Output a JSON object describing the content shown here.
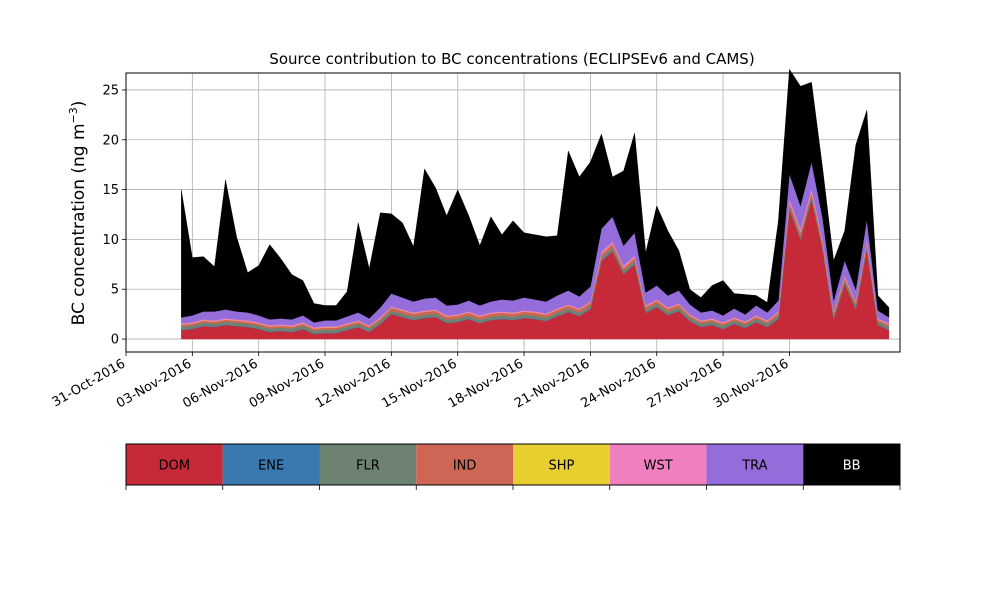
{
  "chart_data": {
    "type": "area",
    "stacked": true,
    "title": "Source contribution to BC concentrations (ECLIPSEv6 and CAMS)",
    "ylabel": "BC concentration (ng m",
    "ylabel_superscript": "−3",
    "ylabel_close": ")",
    "xlabel": "",
    "ylim": [
      -1.3,
      26.7
    ],
    "yticks": [
      0,
      5,
      10,
      15,
      20,
      25
    ],
    "xlim": [
      "2016-10-31",
      "2016-12-05"
    ],
    "xticks": [
      "31-Oct-2016",
      "03-Nov-2016",
      "06-Nov-2016",
      "09-Nov-2016",
      "12-Nov-2016",
      "15-Nov-2016",
      "18-Nov-2016",
      "21-Nov-2016",
      "24-Nov-2016",
      "27-Nov-2016",
      "30-Nov-2016"
    ],
    "grid": true,
    "legend_placement": "bottom colorbar",
    "x": [
      "2016-11-02 12:00",
      "2016-11-03 00:00",
      "2016-11-03 12:00",
      "2016-11-04 00:00",
      "2016-11-04 12:00",
      "2016-11-05 00:00",
      "2016-11-05 12:00",
      "2016-11-06 00:00",
      "2016-11-06 12:00",
      "2016-11-07 00:00",
      "2016-11-07 12:00",
      "2016-11-08 00:00",
      "2016-11-08 12:00",
      "2016-11-09 00:00",
      "2016-11-09 12:00",
      "2016-11-10 00:00",
      "2016-11-10 12:00",
      "2016-11-11 00:00",
      "2016-11-11 12:00",
      "2016-11-12 00:00",
      "2016-11-12 12:00",
      "2016-11-13 00:00",
      "2016-11-13 12:00",
      "2016-11-14 00:00",
      "2016-11-14 12:00",
      "2016-11-15 00:00",
      "2016-11-15 12:00",
      "2016-11-16 00:00",
      "2016-11-16 12:00",
      "2016-11-17 00:00",
      "2016-11-17 12:00",
      "2016-11-18 00:00",
      "2016-11-18 12:00",
      "2016-11-19 00:00",
      "2016-11-19 12:00",
      "2016-11-20 00:00",
      "2016-11-20 12:00",
      "2016-11-21 00:00",
      "2016-11-21 12:00",
      "2016-11-22 00:00",
      "2016-11-22 12:00",
      "2016-11-23 00:00",
      "2016-11-23 12:00",
      "2016-11-24 00:00",
      "2016-11-24 12:00",
      "2016-11-25 00:00",
      "2016-11-25 12:00",
      "2016-11-26 00:00",
      "2016-11-26 12:00",
      "2016-11-27 00:00",
      "2016-11-27 12:00",
      "2016-11-28 00:00",
      "2016-11-28 12:00",
      "2016-11-29 00:00",
      "2016-11-29 12:00",
      "2016-11-30 00:00",
      "2016-11-30 12:00",
      "2016-12-01 00:00",
      "2016-12-01 12:00",
      "2016-12-02 00:00",
      "2016-12-02 12:00",
      "2016-12-03 00:00",
      "2016-12-03 12:00",
      "2016-12-04 00:00",
      "2016-12-04 12:00"
    ],
    "series": [
      {
        "name": "DOM",
        "color": "#c62a38",
        "values": [
          0.9,
          1.0,
          1.3,
          1.2,
          1.4,
          1.3,
          1.2,
          1.0,
          0.7,
          0.8,
          0.7,
          1.0,
          0.5,
          0.6,
          0.6,
          0.9,
          1.2,
          0.7,
          1.5,
          2.5,
          2.2,
          1.9,
          2.1,
          2.2,
          1.6,
          1.7,
          2.0,
          1.6,
          1.9,
          2.0,
          1.9,
          2.1,
          2.0,
          1.8,
          2.3,
          2.7,
          2.3,
          3.0,
          7.8,
          8.8,
          6.5,
          7.5,
          2.6,
          3.2,
          2.4,
          2.8,
          1.8,
          1.2,
          1.4,
          1.0,
          1.5,
          1.1,
          1.7,
          1.2,
          2.0,
          13.0,
          10.0,
          14.0,
          9.0,
          2.0,
          5.5,
          3.0,
          9.0,
          1.4,
          0.9
        ]
      },
      {
        "name": "ENE",
        "color": "#3a78b0",
        "values": [
          0.05,
          0.05,
          0.05,
          0.05,
          0.05,
          0.05,
          0.05,
          0.05,
          0.05,
          0.05,
          0.05,
          0.05,
          0.05,
          0.05,
          0.05,
          0.05,
          0.05,
          0.05,
          0.05,
          0.05,
          0.05,
          0.05,
          0.05,
          0.05,
          0.05,
          0.05,
          0.05,
          0.05,
          0.05,
          0.05,
          0.05,
          0.05,
          0.05,
          0.05,
          0.05,
          0.05,
          0.05,
          0.05,
          0.05,
          0.05,
          0.05,
          0.05,
          0.05,
          0.05,
          0.05,
          0.05,
          0.05,
          0.05,
          0.05,
          0.05,
          0.05,
          0.05,
          0.05,
          0.05,
          0.05,
          0.05,
          0.05,
          0.05,
          0.05,
          0.05,
          0.05,
          0.05,
          0.05,
          0.05,
          0.05
        ]
      },
      {
        "name": "FLR",
        "color": "#6e8272",
        "values": [
          0.3,
          0.3,
          0.3,
          0.3,
          0.3,
          0.3,
          0.3,
          0.3,
          0.3,
          0.3,
          0.3,
          0.3,
          0.3,
          0.3,
          0.3,
          0.3,
          0.3,
          0.3,
          0.3,
          0.3,
          0.3,
          0.3,
          0.3,
          0.3,
          0.3,
          0.3,
          0.3,
          0.3,
          0.3,
          0.3,
          0.3,
          0.3,
          0.3,
          0.3,
          0.3,
          0.3,
          0.3,
          0.3,
          0.3,
          0.3,
          0.3,
          0.3,
          0.3,
          0.3,
          0.3,
          0.3,
          0.3,
          0.3,
          0.3,
          0.3,
          0.3,
          0.3,
          0.3,
          0.3,
          0.3,
          0.3,
          0.3,
          0.3,
          0.3,
          0.3,
          0.3,
          0.3,
          0.3,
          0.3,
          0.3
        ]
      },
      {
        "name": "IND",
        "color": "#cd6654",
        "values": [
          0.2,
          0.2,
          0.2,
          0.2,
          0.2,
          0.2,
          0.2,
          0.2,
          0.2,
          0.2,
          0.2,
          0.2,
          0.2,
          0.2,
          0.2,
          0.2,
          0.2,
          0.2,
          0.2,
          0.3,
          0.3,
          0.3,
          0.3,
          0.3,
          0.3,
          0.3,
          0.3,
          0.3,
          0.3,
          0.3,
          0.3,
          0.3,
          0.3,
          0.3,
          0.3,
          0.3,
          0.3,
          0.3,
          0.4,
          0.4,
          0.3,
          0.3,
          0.3,
          0.3,
          0.3,
          0.3,
          0.2,
          0.2,
          0.2,
          0.2,
          0.2,
          0.2,
          0.2,
          0.2,
          0.3,
          0.4,
          0.4,
          0.4,
          0.4,
          0.3,
          0.3,
          0.3,
          0.4,
          0.2,
          0.2
        ]
      },
      {
        "name": "SHP",
        "color": "#e6cf2f",
        "values": [
          0.02,
          0.02,
          0.02,
          0.02,
          0.02,
          0.02,
          0.02,
          0.02,
          0.02,
          0.02,
          0.02,
          0.02,
          0.02,
          0.02,
          0.02,
          0.02,
          0.02,
          0.02,
          0.02,
          0.02,
          0.02,
          0.02,
          0.02,
          0.02,
          0.02,
          0.02,
          0.02,
          0.02,
          0.02,
          0.02,
          0.02,
          0.02,
          0.02,
          0.02,
          0.02,
          0.02,
          0.02,
          0.02,
          0.02,
          0.02,
          0.02,
          0.02,
          0.02,
          0.02,
          0.02,
          0.02,
          0.02,
          0.02,
          0.02,
          0.02,
          0.02,
          0.02,
          0.02,
          0.02,
          0.02,
          0.02,
          0.02,
          0.02,
          0.02,
          0.02,
          0.02,
          0.02,
          0.02,
          0.02,
          0.02
        ]
      },
      {
        "name": "WST",
        "color": "#f07fbf",
        "values": [
          0.1,
          0.1,
          0.1,
          0.1,
          0.1,
          0.1,
          0.1,
          0.1,
          0.1,
          0.1,
          0.1,
          0.1,
          0.1,
          0.1,
          0.1,
          0.1,
          0.1,
          0.1,
          0.1,
          0.1,
          0.1,
          0.1,
          0.1,
          0.1,
          0.1,
          0.1,
          0.1,
          0.1,
          0.1,
          0.1,
          0.1,
          0.1,
          0.1,
          0.1,
          0.1,
          0.1,
          0.1,
          0.1,
          0.2,
          0.2,
          0.2,
          0.2,
          0.1,
          0.1,
          0.1,
          0.1,
          0.1,
          0.1,
          0.1,
          0.1,
          0.1,
          0.1,
          0.1,
          0.1,
          0.1,
          0.3,
          0.3,
          0.3,
          0.2,
          0.1,
          0.2,
          0.1,
          0.2,
          0.1,
          0.1
        ]
      },
      {
        "name": "TRA",
        "color": "#946ddb",
        "values": [
          0.6,
          0.7,
          0.8,
          0.9,
          0.9,
          0.8,
          0.8,
          0.7,
          0.6,
          0.6,
          0.6,
          0.7,
          0.5,
          0.6,
          0.6,
          0.7,
          0.8,
          0.7,
          1.0,
          1.3,
          1.2,
          1.1,
          1.2,
          1.2,
          1.0,
          1.0,
          1.1,
          1.0,
          1.1,
          1.2,
          1.2,
          1.3,
          1.2,
          1.2,
          1.3,
          1.4,
          1.2,
          1.5,
          2.3,
          2.5,
          2.0,
          2.3,
          1.3,
          1.4,
          1.2,
          1.3,
          1.0,
          0.8,
          0.8,
          0.7,
          0.9,
          0.7,
          1.0,
          0.8,
          1.1,
          2.5,
          2.3,
          2.7,
          2.2,
          1.1,
          1.5,
          1.2,
          2.0,
          0.8,
          0.6
        ]
      },
      {
        "name": "BB",
        "color": "#000000",
        "values": [
          12.8,
          5.8,
          5.5,
          4.5,
          13.0,
          7.5,
          4.0,
          5.0,
          7.5,
          6.0,
          4.5,
          3.5,
          1.9,
          1.5,
          1.5,
          2.5,
          9.0,
          5.0,
          9.5,
          8.0,
          7.5,
          5.5,
          13.0,
          11.0,
          9.0,
          11.5,
          8.5,
          6.0,
          8.5,
          6.5,
          8.0,
          6.5,
          6.5,
          6.5,
          6.0,
          14.0,
          12.0,
          12.5,
          9.5,
          4.0,
          7.5,
          10.0,
          4.0,
          8.0,
          6.5,
          4.0,
          1.5,
          1.5,
          2.5,
          3.5,
          1.5,
          2.0,
          1.0,
          1.0,
          8.0,
          10.5,
          12.0,
          8.0,
          5.0,
          4.0,
          3.0,
          14.5,
          11.0,
          1.5,
          1.0
        ]
      }
    ]
  }
}
